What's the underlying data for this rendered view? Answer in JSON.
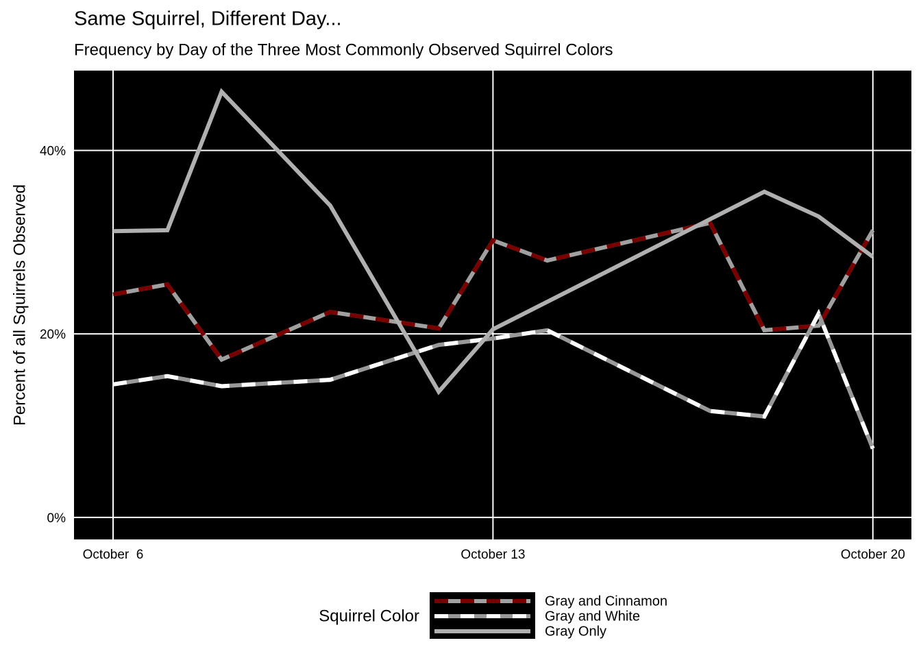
{
  "chart_data": {
    "type": "line",
    "title": "Same Squirrel, Different Day...",
    "subtitle": "Frequency by Day of the Three Most Commonly Observed Squirrel Colors",
    "y_label": "Percent of all Squirrels Observed",
    "legend_title": "Squirrel Color",
    "legend": "bottom",
    "grid": true,
    "x": [
      6,
      7,
      8,
      10,
      12,
      13,
      14,
      17,
      18,
      19,
      20
    ],
    "xlim": [
      5.28,
      20.71
    ],
    "xticks": [
      {
        "value": 6,
        "label": "October  6"
      },
      {
        "value": 13,
        "label": "October 13"
      },
      {
        "value": 20,
        "label": "October 20"
      }
    ],
    "ylim": [
      -2.4,
      48.7
    ],
    "yticks": [
      {
        "value": 0,
        "label": "0%"
      },
      {
        "value": 20,
        "label": "20%"
      },
      {
        "value": 40,
        "label": "40%"
      }
    ],
    "series": [
      {
        "name": "Gray and Cinnamon",
        "color": "#7a0000",
        "values": [
          24.3,
          25.4,
          17.2,
          22.4,
          20.6,
          30.2,
          28.0,
          32.1,
          20.4,
          20.9,
          31.3
        ]
      },
      {
        "name": "Gray and White",
        "color": "#ffffff",
        "values": [
          14.5,
          15.4,
          14.3,
          15.0,
          18.8,
          19.5,
          20.4,
          11.6,
          11.0,
          22.2,
          7.5
        ]
      },
      {
        "name": "Gray Only",
        "color": "#b0b0b0",
        "values": [
          31.2,
          31.3,
          46.4,
          34.0,
          13.7,
          20.5,
          23.5,
          32.5,
          35.5,
          32.8,
          28.4
        ]
      }
    ]
  }
}
